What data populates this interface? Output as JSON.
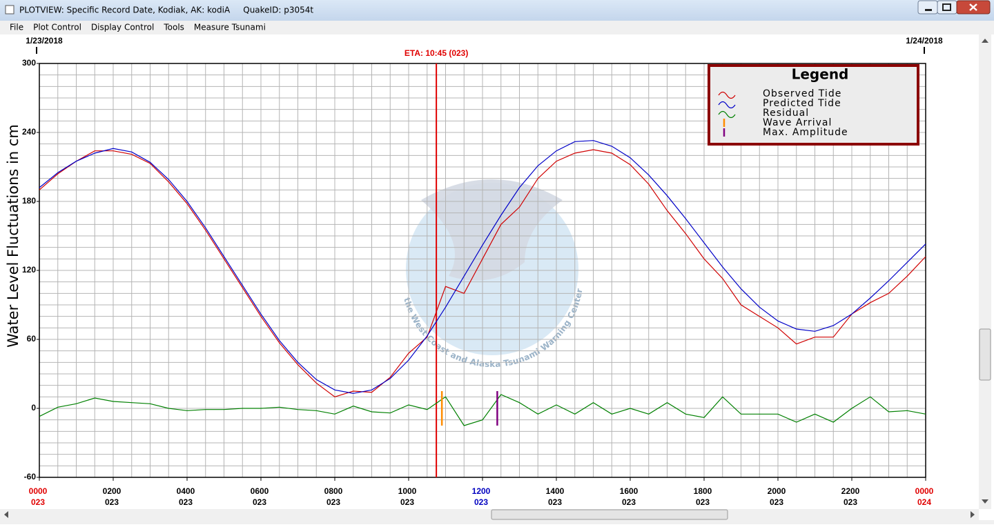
{
  "window": {
    "title": "PLOTVIEW: Specific Record Date, Kodiak, AK: kodiA     QuakeID: p3054t"
  },
  "menu": [
    "File",
    "Plot Control",
    "Display Control",
    "Tools",
    "Measure Tsunami"
  ],
  "chart_data": {
    "type": "line",
    "date_start": "1/23/2018",
    "date_end": "1/24/2018",
    "eta_label": "ETA: 10:45 (023)",
    "eta_x": 10.75,
    "eta_color": "#e00000",
    "y_label": "Water Level Fluctuations in cm",
    "watermark": "the West Coast and Alaska Tsunami Warning Center",
    "legend_title": "Legend",
    "legend_position": "upper right",
    "grid": true,
    "xlim": [
      0,
      24
    ],
    "ylim": [
      -60,
      300
    ],
    "yticks": [
      -60,
      0,
      60,
      120,
      180,
      240,
      300
    ],
    "y_minor_ticks": [
      -60,
      -50,
      -40,
      -30,
      -20,
      -10,
      0,
      10,
      20,
      30,
      40,
      50,
      60,
      70,
      80,
      90,
      100,
      110,
      120,
      130,
      140,
      150,
      160,
      170,
      180,
      190,
      200,
      210,
      220,
      230,
      240,
      250,
      260,
      270,
      280,
      290,
      300
    ],
    "x_minor_ticks": [
      0,
      0.5,
      1,
      1.5,
      2,
      2.5,
      3,
      3.5,
      4,
      4.5,
      5,
      5.5,
      6,
      6.5,
      7,
      7.5,
      8,
      8.5,
      9,
      9.5,
      10,
      10.5,
      11,
      11.5,
      12,
      12.5,
      13,
      13.5,
      14,
      14.5,
      15,
      15.5,
      16,
      16.5,
      17,
      17.5,
      18,
      18.5,
      19,
      19.5,
      20,
      20.5,
      21,
      21.5,
      22,
      22.5,
      23,
      23.5,
      24
    ],
    "xticks": [
      {
        "value": 0,
        "label": "0000"
      },
      {
        "value": 2,
        "label": "0200"
      },
      {
        "value": 4,
        "label": "0400"
      },
      {
        "value": 6,
        "label": "0600"
      },
      {
        "value": 8,
        "label": "0800"
      },
      {
        "value": 10,
        "label": "1000"
      },
      {
        "value": 12,
        "label": "1200"
      },
      {
        "value": 14,
        "label": "1400"
      },
      {
        "value": 16,
        "label": "1600"
      },
      {
        "value": 18,
        "label": "1800"
      },
      {
        "value": 20,
        "label": "2000"
      },
      {
        "value": 22,
        "label": "2200"
      },
      {
        "value": 24,
        "label": "0000"
      }
    ],
    "xtick_days": [
      "023",
      "023",
      "023",
      "023",
      "023",
      "023",
      "023",
      "023",
      "023",
      "023",
      "023",
      "023",
      "024"
    ],
    "xtick_colors": [
      "#e00000",
      "#000000",
      "#000000",
      "#000000",
      "#000000",
      "#000000",
      "#0000c0",
      "#000000",
      "#000000",
      "#000000",
      "#000000",
      "#000000",
      "#e00000"
    ],
    "x": [
      0,
      0.5,
      1,
      1.5,
      2,
      2.5,
      3,
      3.5,
      4,
      4.5,
      5,
      5.5,
      6,
      6.5,
      7,
      7.5,
      8,
      8.5,
      9,
      9.5,
      10,
      10.5,
      11,
      11.5,
      12,
      12.5,
      13,
      13.5,
      14,
      14.5,
      15,
      15.5,
      16,
      16.5,
      17,
      17.5,
      18,
      18.5,
      19,
      19.5,
      20,
      20.5,
      21,
      21.5,
      22,
      22.5,
      23,
      23.5,
      24
    ],
    "series": [
      {
        "name": "Observed Tide",
        "color": "#d00000",
        "values": [
          190,
          204,
          215,
          224,
          224,
          221,
          213,
          197,
          178,
          155,
          130,
          105,
          80,
          57,
          38,
          22,
          10,
          15,
          14,
          27,
          48,
          62,
          106,
          100,
          130,
          160,
          175,
          200,
          215,
          222,
          225,
          222,
          212,
          195,
          172,
          152,
          130,
          113,
          90,
          80,
          70,
          56,
          62,
          62,
          82,
          92,
          100,
          115,
          132
        ]
      },
      {
        "name": "Predicted Tide",
        "color": "#0000c8",
        "values": [
          192,
          205,
          215,
          222,
          226,
          223,
          214,
          199,
          180,
          157,
          132,
          107,
          82,
          59,
          40,
          25,
          16,
          13,
          16,
          26,
          42,
          63,
          88,
          115,
          142,
          168,
          192,
          211,
          224,
          232,
          233,
          228,
          218,
          203,
          185,
          165,
          144,
          123,
          104,
          88,
          76,
          69,
          67,
          72,
          82,
          96,
          111,
          127,
          143
        ]
      },
      {
        "name": "Residual",
        "color": "#008000",
        "values": [
          -7,
          1,
          4,
          9,
          6,
          5,
          4,
          0,
          -2,
          -1,
          -1,
          0,
          0,
          1,
          -1,
          -2,
          -5,
          2,
          -3,
          -4,
          3,
          -1,
          10,
          -15,
          -10,
          12,
          5,
          -5,
          3,
          -5,
          5,
          -5,
          0,
          -5,
          5,
          -5,
          -8,
          10,
          -5,
          -5,
          -5,
          -12,
          -5,
          -12,
          0,
          10,
          -3,
          -2,
          -5
        ]
      }
    ],
    "markers": [
      {
        "name": "Wave Arrival",
        "color": "#ff8c00",
        "x": 10.9,
        "low": -15,
        "high": 15
      },
      {
        "name": "Max. Amplitude",
        "color": "#800080",
        "x": 12.4,
        "low": -15,
        "high": 15
      }
    ]
  }
}
